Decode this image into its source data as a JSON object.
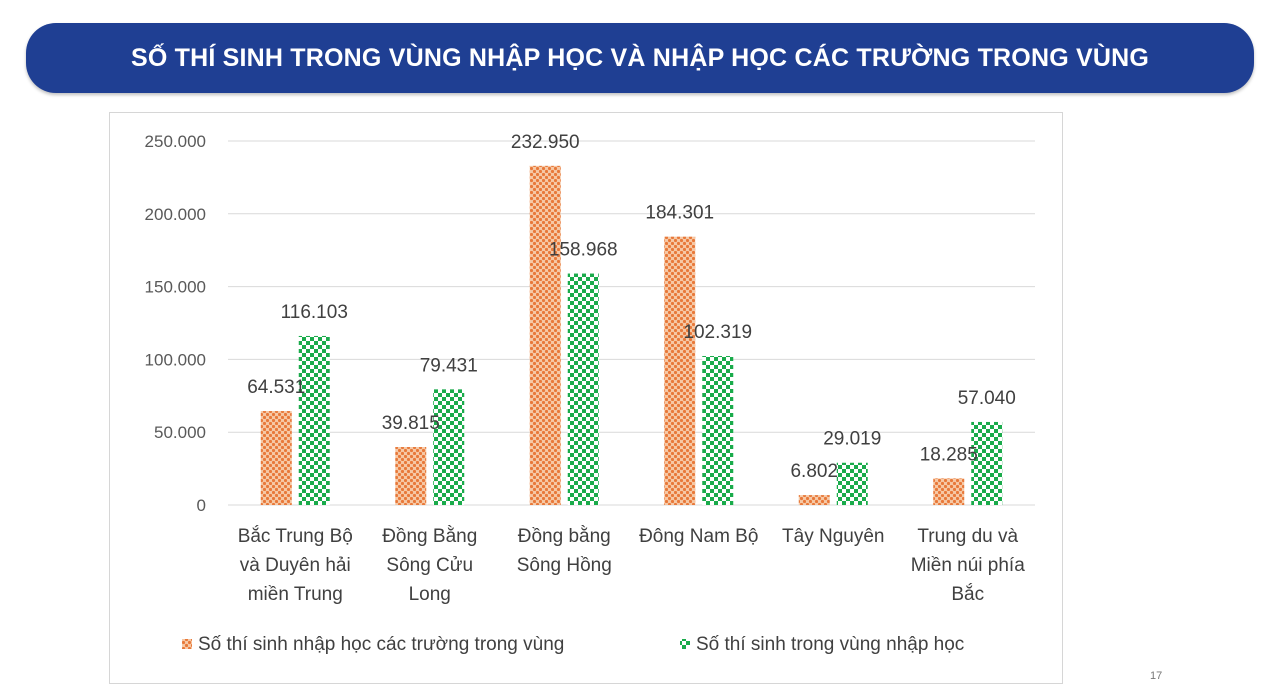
{
  "banner": {
    "title": "SỐ THÍ SINH TRONG VÙNG  NHẬP HỌC VÀ NHẬP HỌC CÁC TRƯỜNG TRONG VÙNG"
  },
  "slide_number": "17",
  "colors": {
    "banner_bg": "#1f3f93",
    "orange_series": "#e8793a",
    "green_series": "#1aab4b"
  },
  "chart_data": {
    "type": "bar",
    "title": "",
    "xlabel": "",
    "ylabel": "",
    "ylim": [
      0,
      250000
    ],
    "y_ticks": [
      0,
      50000,
      100000,
      150000,
      200000,
      250000
    ],
    "y_tick_labels": [
      "0",
      "50.000",
      "100.000",
      "150.000",
      "200.000",
      "250.000"
    ],
    "grid": true,
    "legend_position": "bottom",
    "categories": [
      [
        "Bắc Trung Bộ",
        "và Duyên hải",
        "miền Trung"
      ],
      [
        "Đồng Bằng",
        "Sông Cửu",
        "Long"
      ],
      [
        "Đồng bằng",
        "Sông Hồng"
      ],
      [
        "Đông Nam Bộ"
      ],
      [
        "Tây Nguyên"
      ],
      [
        "Trung du và",
        "Miền núi phía",
        "Bắc"
      ]
    ],
    "series": [
      {
        "name": "Số thí sinh nhập học các trường trong vùng",
        "color": "#e8793a",
        "pattern": "dotted",
        "values": [
          64531,
          39815,
          232950,
          184301,
          6802,
          18285
        ],
        "labels": [
          "64.531",
          "39.815",
          "232.950",
          "184.301",
          "6.802",
          "18.285"
        ]
      },
      {
        "name": "Số thí sinh trong vùng nhập học",
        "color": "#1aab4b",
        "pattern": "checker",
        "values": [
          116103,
          79431,
          158968,
          102319,
          29019,
          57040
        ],
        "labels": [
          "116.103",
          "79.431",
          "158.968",
          "102.319",
          "29.019",
          "57.040"
        ]
      }
    ]
  }
}
